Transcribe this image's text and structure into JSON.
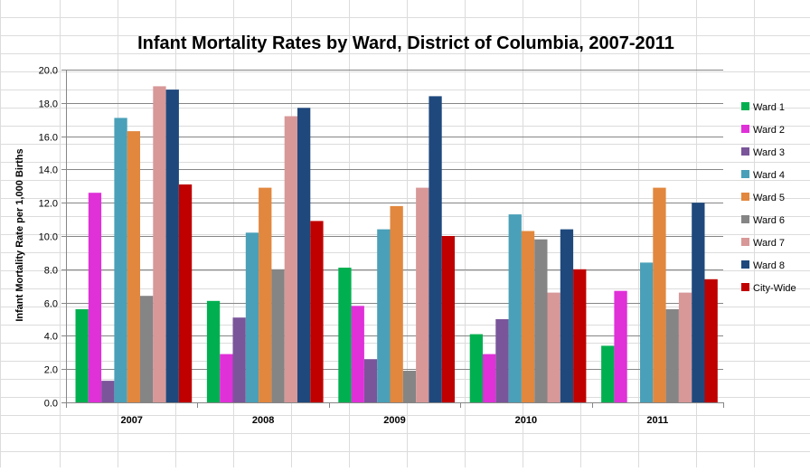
{
  "chart_data": {
    "type": "bar",
    "title": "Infant Mortality Rates by Ward, District of Columbia, 2007-2011",
    "xlabel": "",
    "ylabel": "Infant Mortality Rate per 1,000 Births",
    "ylim": [
      0,
      20
    ],
    "ytick_labels": [
      "0.0",
      "2.0",
      "4.0",
      "6.0",
      "8.0",
      "10.0",
      "12.0",
      "14.0",
      "16.0",
      "18.0",
      "20.0"
    ],
    "grid": true,
    "legend_position": "right",
    "categories": [
      "2007",
      "2008",
      "2009",
      "2010",
      "2011"
    ],
    "series": [
      {
        "name": "Ward 1",
        "color": "#00b050",
        "values": [
          5.6,
          6.1,
          8.1,
          4.1,
          3.4
        ]
      },
      {
        "name": "Ward 2",
        "color": "#e030d8",
        "values": [
          12.6,
          2.9,
          5.8,
          2.9,
          6.7
        ]
      },
      {
        "name": "Ward 3",
        "color": "#7a559a",
        "values": [
          1.3,
          5.1,
          2.6,
          5.0,
          0
        ]
      },
      {
        "name": "Ward 4",
        "color": "#4aa0b8",
        "values": [
          17.1,
          10.2,
          10.4,
          11.3,
          8.4
        ]
      },
      {
        "name": "Ward 5",
        "color": "#e2873e",
        "values": [
          16.3,
          12.9,
          11.8,
          10.3,
          12.9
        ]
      },
      {
        "name": "Ward 6",
        "color": "#858585",
        "values": [
          6.4,
          8.0,
          1.9,
          9.8,
          5.6
        ]
      },
      {
        "name": "Ward 7",
        "color": "#d89898",
        "values": [
          19.0,
          17.2,
          12.9,
          6.6,
          6.6
        ]
      },
      {
        "name": "Ward 8",
        "color": "#1f497d",
        "values": [
          18.8,
          17.7,
          18.4,
          10.4,
          12.0
        ]
      },
      {
        "name": "City-Wide",
        "color": "#c00000",
        "values": [
          13.1,
          10.9,
          10.0,
          8.0,
          7.4
        ]
      }
    ]
  }
}
